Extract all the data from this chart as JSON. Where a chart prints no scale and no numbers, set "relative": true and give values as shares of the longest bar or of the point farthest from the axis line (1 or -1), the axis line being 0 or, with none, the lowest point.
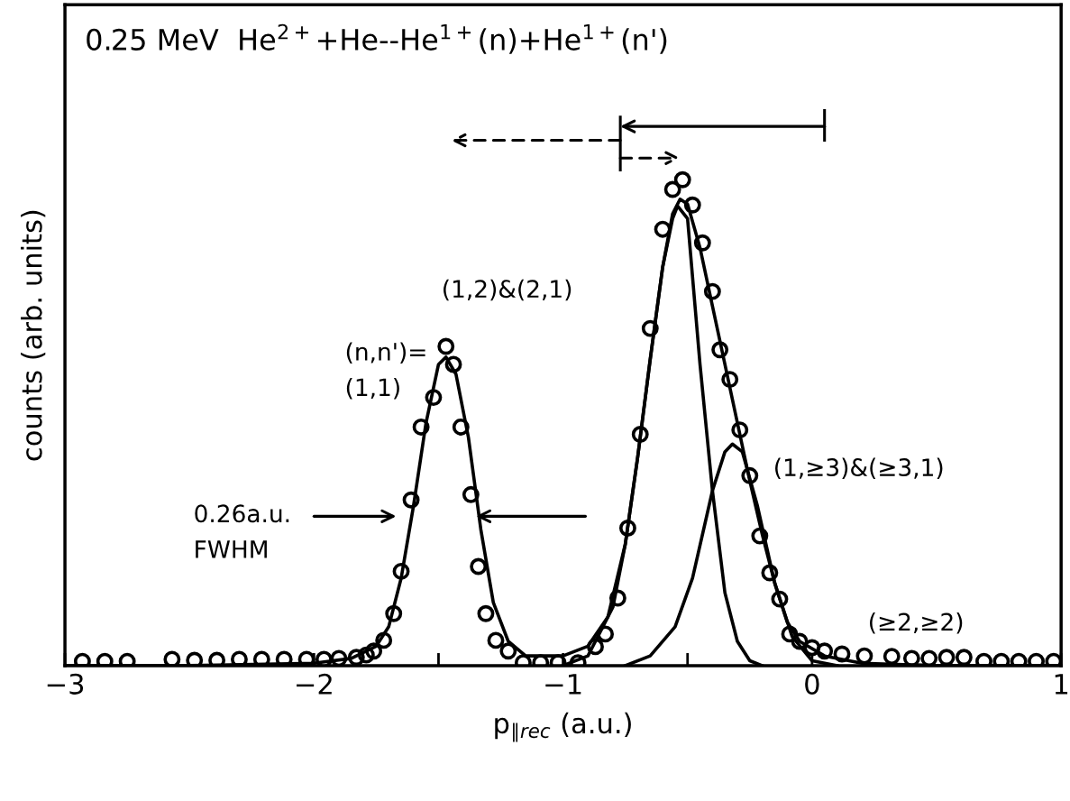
{
  "chart_data": {
    "type": "scatter",
    "relative": true,
    "title": "0.25 MeV  He$^{2+}$+He--He$^{1+}$(n)+He$^{1+}$(n')",
    "xlabel": "p$_{∥rec}$ (a.u.)",
    "ylabel": "counts (arb. units)",
    "xlim": [
      -3,
      1
    ],
    "xticks": [
      -3,
      -2,
      -1,
      0,
      1,
      {
        "value": -1.5,
        "label": null
      },
      {
        "value": -0.5,
        "label": null
      }
    ],
    "grid": false,
    "annotations": [
      "(1,2)&(2,1)",
      "(n,n')=\n(1,1)",
      "0.26a.u.\nFWHM",
      "(1,≥3)&(≥3,1)",
      "(≥2,≥2)"
    ],
    "series": [
      {
        "type": "scatter",
        "marker": "circle",
        "color": "#000000",
        "x": [
          -2.93,
          -2.84,
          -2.75,
          -2.57,
          -2.48,
          -2.39,
          -2.3,
          -2.21,
          -2.12,
          -2.03,
          -1.96,
          -1.9,
          -1.83,
          -1.79,
          -1.76,
          -1.72,
          -1.68,
          -1.65,
          -1.61,
          -1.57,
          -1.52,
          -1.47,
          -1.44,
          -1.41,
          -1.37,
          -1.34,
          -1.31,
          -1.27,
          -1.22,
          -1.16,
          -1.09,
          -1.02,
          -0.94,
          -0.87,
          -0.83,
          -0.78,
          -0.74,
          -0.69,
          -0.65,
          -0.6,
          -0.56,
          -0.52,
          -0.48,
          -0.44,
          -0.4,
          -0.37,
          -0.33,
          -0.29,
          -0.25,
          -0.21,
          -0.17,
          -0.13,
          -0.09,
          -0.05,
          0.0,
          0.05,
          0.12,
          0.21,
          0.32,
          0.4,
          0.47,
          0.54,
          0.61,
          0.69,
          0.76,
          0.83,
          0.9,
          0.97
        ],
        "values": [
          0.009,
          0.009,
          0.009,
          0.013,
          0.011,
          0.011,
          0.013,
          0.013,
          0.013,
          0.013,
          0.013,
          0.015,
          0.017,
          0.022,
          0.03,
          0.052,
          0.107,
          0.194,
          0.341,
          0.491,
          0.552,
          0.657,
          0.62,
          0.491,
          0.352,
          0.204,
          0.107,
          0.052,
          0.03,
          0.006,
          0.006,
          0.006,
          0.006,
          0.039,
          0.065,
          0.139,
          0.283,
          0.476,
          0.694,
          0.898,
          0.98,
          1,
          0.948,
          0.87,
          0.77,
          0.65,
          0.589,
          0.485,
          0.391,
          0.267,
          0.191,
          0.137,
          0.065,
          0.05,
          0.037,
          0.03,
          0.024,
          0.02,
          0.019,
          0.015,
          0.015,
          0.017,
          0.017,
          0.009,
          0.009,
          0.009,
          0.009,
          0.009
        ]
      },
      {
        "type": "line",
        "color": "#000000",
        "x": [
          -3.0,
          -2.5,
          -2.0,
          -1.85,
          -1.75,
          -1.7,
          -1.65,
          -1.6,
          -1.55,
          -1.5,
          -1.47,
          -1.43,
          -1.38,
          -1.33,
          -1.28,
          -1.22,
          -1.15,
          -1.0,
          -0.9,
          -0.82,
          -0.75,
          -0.7,
          -0.65,
          -0.6,
          -0.56,
          -0.53,
          -0.5,
          -0.45,
          -0.4,
          -0.35,
          -0.3,
          -0.25,
          -0.2,
          -0.15,
          -0.1,
          -0.05,
          0.05,
          0.2,
          0.5,
          1.0
        ],
        "values": [
          0.0,
          0.0,
          0.005,
          0.015,
          0.04,
          0.08,
          0.18,
          0.33,
          0.5,
          0.62,
          0.635,
          0.6,
          0.47,
          0.28,
          0.13,
          0.05,
          0.02,
          0.02,
          0.04,
          0.1,
          0.25,
          0.43,
          0.63,
          0.82,
          0.93,
          0.96,
          0.95,
          0.86,
          0.74,
          0.62,
          0.5,
          0.38,
          0.27,
          0.17,
          0.09,
          0.05,
          0.02,
          0.005,
          0.0,
          0.0
        ]
      },
      {
        "type": "line",
        "color": "#000000",
        "x": [
          -1.0,
          -0.9,
          -0.8,
          -0.75,
          -0.7,
          -0.65,
          -0.6,
          -0.56,
          -0.54,
          -0.5,
          -0.45,
          -0.4,
          -0.35,
          -0.3,
          -0.25,
          -0.2
        ],
        "values": [
          0.0,
          0.02,
          0.12,
          0.25,
          0.43,
          0.63,
          0.82,
          0.92,
          0.946,
          0.92,
          0.62,
          0.36,
          0.15,
          0.05,
          0.01,
          0.0
        ]
      },
      {
        "type": "line",
        "color": "#000000",
        "x": [
          -0.75,
          -0.65,
          -0.55,
          -0.48,
          -0.4,
          -0.35,
          -0.32,
          -0.28,
          -0.22,
          -0.15,
          -0.08,
          0.0,
          0.1
        ],
        "values": [
          0.0,
          0.02,
          0.08,
          0.18,
          0.36,
          0.44,
          0.456,
          0.44,
          0.33,
          0.17,
          0.06,
          0.01,
          0.0
        ]
      }
    ]
  }
}
